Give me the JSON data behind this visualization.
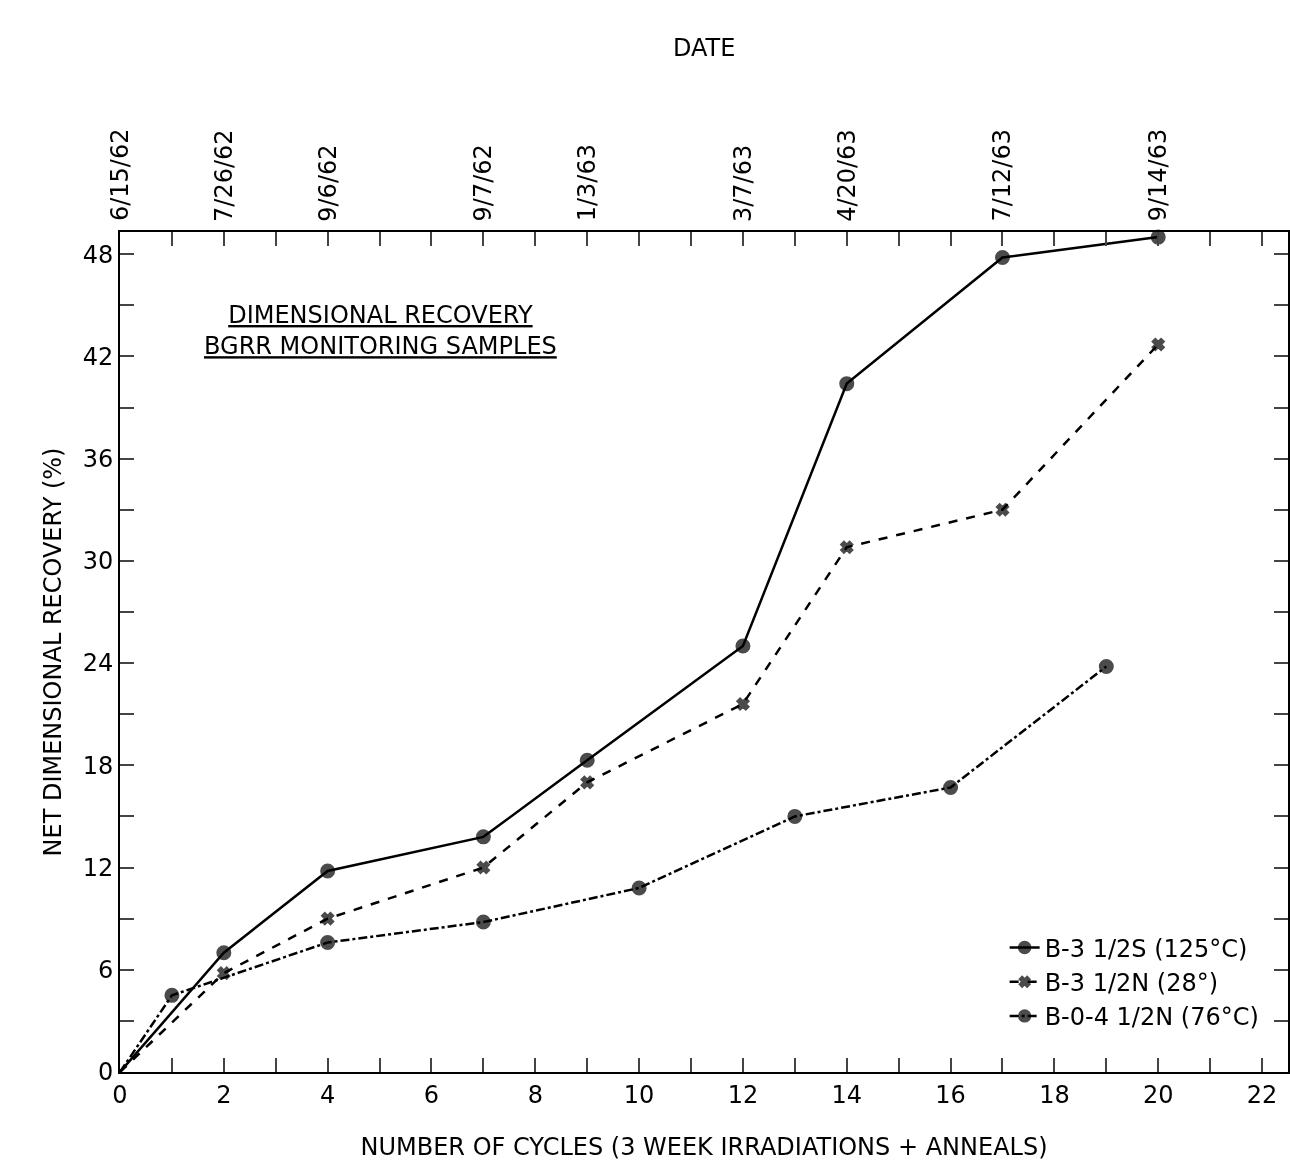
{
  "chart_data": {
    "type": "line",
    "title": "DIMENSIONAL RECOVERY\nBGRR MONITORING SAMPLES",
    "xlabel": "NUMBER OF CYCLES (3 WEEK IRRADIATIONS + ANNEALS)",
    "ylabel": "NET DIMENSIONAL RECOVERY (%)",
    "x2label": "DATE",
    "xlim": [
      0,
      22.5
    ],
    "ylim": [
      0,
      49.3
    ],
    "xticks": [
      0,
      {
        "value": 1,
        "label": null
      },
      2,
      {
        "value": 3,
        "label": null
      },
      4,
      {
        "value": 5,
        "label": null
      },
      6,
      {
        "value": 7,
        "label": null
      },
      8,
      {
        "value": 9,
        "label": null
      },
      10,
      {
        "value": 11,
        "label": null
      },
      12,
      {
        "value": 13,
        "label": null
      },
      14,
      {
        "value": 15,
        "label": null
      },
      16,
      {
        "value": 17,
        "label": null
      },
      18,
      {
        "value": 19,
        "label": null
      },
      20,
      {
        "value": 21,
        "label": null
      },
      22
    ],
    "annotations": [
      "6/15/62",
      "7/26/62",
      "9/6/62",
      "9/7/62",
      "1/3/63",
      "3/7/63",
      "4/20/63",
      "7/12/63",
      "9/14/63"
    ],
    "yticks": [
      0,
      {
        "value": 3,
        "label": null
      },
      6,
      {
        "value": 9,
        "label": null
      },
      12,
      {
        "value": 15,
        "label": null
      },
      18,
      {
        "value": 21,
        "label": null
      },
      24,
      {
        "value": 27,
        "label": null
      },
      30,
      {
        "value": 33,
        "label": null
      },
      36,
      {
        "value": 39,
        "label": null
      },
      42,
      {
        "value": 45,
        "label": null
      },
      48
    ],
    "grid": false,
    "legend": "bottom right",
    "series": [
      {
        "name": "B-3 1/2S (125°C)",
        "color": "#000000",
        "line_style": "solid",
        "marker": "circle",
        "x": [
          0,
          2,
          4,
          7,
          9,
          12,
          14,
          17,
          20
        ],
        "values": [
          0,
          7.0,
          11.8,
          13.8,
          18.3,
          25.0,
          40.4,
          47.8,
          49.0
        ]
      },
      {
        "name": "B-3 1/2N (28°)",
        "color": "#000000",
        "line_style": "dashed",
        "marker": "cross",
        "x": [
          0,
          2,
          4,
          7,
          9,
          12,
          14,
          17,
          20
        ],
        "values": [
          0,
          5.8,
          9.0,
          12.0,
          17.0,
          21.6,
          30.8,
          33.0,
          42.7
        ]
      },
      {
        "name": "B-0-4 1/2N (76°C)",
        "color": "#000000",
        "line_style": "dashdot",
        "marker": "circle",
        "x": [
          0,
          1,
          4,
          7,
          10,
          13,
          16,
          19
        ],
        "values": [
          0,
          4.5,
          7.6,
          8.8,
          10.8,
          15.0,
          16.7,
          23.8
        ]
      }
    ]
  }
}
